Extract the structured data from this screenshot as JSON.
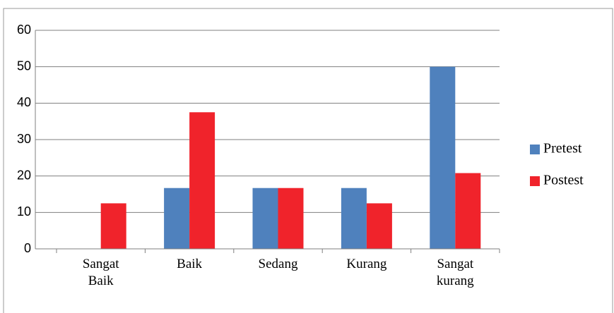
{
  "chart_data": {
    "type": "bar",
    "categories": [
      "Sangat Baik",
      "Baik",
      "Sedang",
      "Kurang",
      "Sangat kurang"
    ],
    "series": [
      {
        "name": "Pretest",
        "color": "#4f81bd",
        "values": [
          0,
          16.7,
          16.7,
          16.7,
          50
        ]
      },
      {
        "name": "Postest",
        "color": "#f0232b",
        "values": [
          12.5,
          37.5,
          16.7,
          12.5,
          20.8
        ]
      }
    ],
    "ylim": [
      0,
      60
    ],
    "yticks": [
      0,
      10,
      20,
      30,
      40,
      50,
      60
    ],
    "grid": true,
    "legend": "right"
  }
}
